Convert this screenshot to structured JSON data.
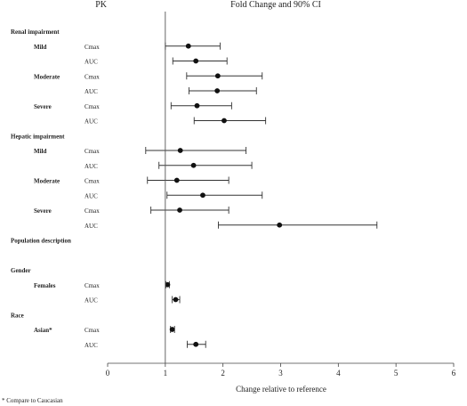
{
  "chart_data": {
    "type": "forest",
    "header_left": "PK",
    "header_right": "Fold Change and 90% CI",
    "xlabel": "Change relative to reference",
    "xlim": [
      0,
      6
    ],
    "xticks": [
      "0",
      "1",
      "2",
      "3",
      "4",
      "5",
      "6"
    ],
    "reference_line": 1,
    "footnote": "* Compare to Caucasian",
    "rows": [
      {
        "group": "Renal impairment"
      },
      {
        "sub": "Mild",
        "pk": "Cmax",
        "est": 1.4,
        "lo": 1.0,
        "hi": 1.95
      },
      {
        "pk": "AUC",
        "est": 1.53,
        "lo": 1.13,
        "hi": 2.07
      },
      {
        "sub": "Moderate",
        "pk": "Cmax",
        "est": 1.91,
        "lo": 1.37,
        "hi": 2.68
      },
      {
        "pk": "AUC",
        "est": 1.9,
        "lo": 1.41,
        "hi": 2.58
      },
      {
        "sub": "Severe",
        "pk": "Cmax",
        "est": 1.55,
        "lo": 1.1,
        "hi": 2.15
      },
      {
        "pk": "AUC",
        "est": 2.02,
        "lo": 1.5,
        "hi": 2.74
      },
      {
        "group": "Hepatic impairment"
      },
      {
        "sub": "Mild",
        "pk": "Cmax",
        "est": 1.26,
        "lo": 0.66,
        "hi": 2.4
      },
      {
        "pk": "AUC",
        "est": 1.49,
        "lo": 0.89,
        "hi": 2.5
      },
      {
        "sub": "Moderate",
        "pk": "Cmax",
        "est": 1.2,
        "lo": 0.69,
        "hi": 2.1
      },
      {
        "pk": "AUC",
        "est": 1.65,
        "lo": 1.03,
        "hi": 2.68
      },
      {
        "sub": "Severe",
        "pk": "Cmax",
        "est": 1.25,
        "lo": 0.75,
        "hi": 2.1
      },
      {
        "pk": "AUC",
        "est": 2.98,
        "lo": 1.92,
        "hi": 4.67
      },
      {
        "group": "Population description"
      },
      {
        "blank": true
      },
      {
        "group": "Gender"
      },
      {
        "sub": "Females",
        "pk": "Cmax",
        "est": 1.04,
        "lo": 1.01,
        "hi": 1.07
      },
      {
        "pk": "AUC",
        "est": 1.18,
        "lo": 1.12,
        "hi": 1.25
      },
      {
        "group": "Race"
      },
      {
        "sub": "Asian*",
        "pk": "Cmax",
        "est": 1.12,
        "lo": 1.09,
        "hi": 1.16
      },
      {
        "pk": "AUC",
        "est": 1.53,
        "lo": 1.38,
        "hi": 1.7
      }
    ]
  }
}
